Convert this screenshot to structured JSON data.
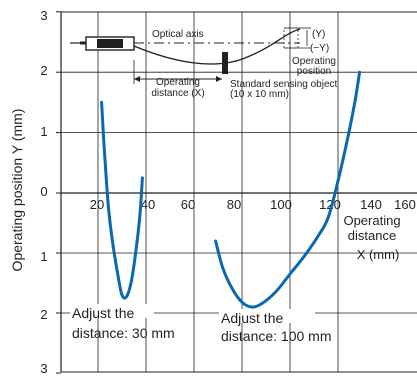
{
  "chart_data": {
    "type": "line",
    "ylabel": "Operating position Y (mm)",
    "xlabel": [
      "Operating",
      "distance",
      "X (mm)"
    ],
    "x_ticks": [
      "20",
      "40",
      "60",
      "80",
      "100",
      "120",
      "140",
      "160"
    ],
    "y_ticks_upper": [
      "3",
      "2",
      "1",
      "0"
    ],
    "y_ticks_lower": [
      "1",
      "2",
      "3"
    ],
    "xlim": [
      10,
      170
    ],
    "ylim": [
      -3,
      3
    ],
    "grid": true,
    "series": [
      {
        "points": [
          [
            21.5,
            1.5
          ],
          [
            22.5,
            0.8
          ],
          [
            23.5,
            0.2
          ],
          [
            24.5,
            -0.3
          ],
          [
            26,
            -0.8
          ],
          [
            28,
            -1.3
          ],
          [
            30,
            -1.7
          ],
          [
            32,
            -1.72
          ],
          [
            34,
            -1.45
          ],
          [
            36,
            -0.9
          ],
          [
            37.5,
            -0.35
          ],
          [
            38.5,
            0.25
          ]
        ]
      },
      {
        "points": [
          [
            69,
            -0.8
          ],
          [
            72,
            -1.25
          ],
          [
            76,
            -1.6
          ],
          [
            80,
            -1.82
          ],
          [
            84,
            -1.9
          ],
          [
            88,
            -1.85
          ],
          [
            94,
            -1.65
          ],
          [
            100,
            -1.35
          ],
          [
            106,
            -1.05
          ],
          [
            112,
            -0.7
          ],
          [
            116,
            -0.4
          ],
          [
            120,
            0.2
          ],
          [
            124,
            0.9
          ],
          [
            127,
            1.5
          ],
          [
            129,
            2.0
          ]
        ]
      }
    ],
    "series_labels": [
      {
        "lines": [
          "Adjust the",
          "distance: 30 mm"
        ]
      },
      {
        "lines": [
          "Adjust the",
          "distance: 100 mm"
        ]
      }
    ],
    "colors": {
      "curve": "#0a68b0",
      "axis": "#231f20",
      "grid": "#231f20",
      "inset_fill": "#231f20"
    }
  },
  "inset": {
    "optical_axis": "Optical axis",
    "y_plus": "(Y)",
    "y_minus": "(−Y)",
    "operating_position": [
      "Operating",
      "position"
    ],
    "operating_distance": [
      "Operating",
      "distance (X)"
    ],
    "object_label": [
      "Standard sensing object",
      "(10 x 10 mm)"
    ]
  }
}
